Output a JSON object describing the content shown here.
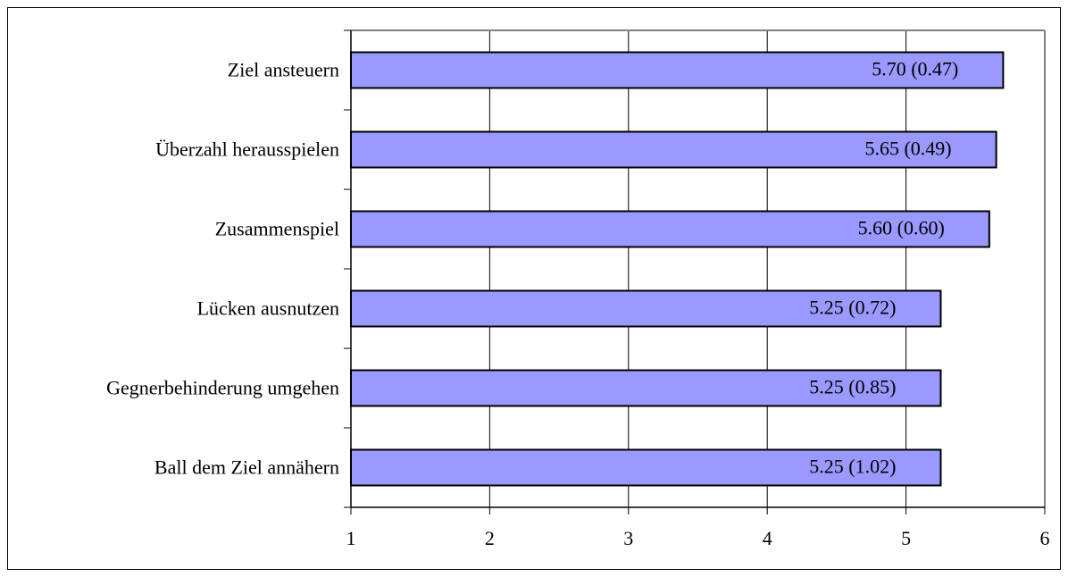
{
  "chart_data": {
    "type": "bar",
    "orientation": "horizontal",
    "categories": [
      "Ziel ansteuern",
      "Überzahl herausspielen",
      "Zusammenspiel",
      "Lücken ausnutzen",
      "Gegnerbehinderung umgehen",
      "Ball dem Ziel annähern"
    ],
    "values": [
      5.7,
      5.65,
      5.6,
      5.25,
      5.25,
      5.25
    ],
    "data_labels": [
      "5.70 (0.47)",
      "5.65 (0.49)",
      "5.60 (0.60)",
      "5.25 (0.72)",
      "5.25 (0.85)",
      "5.25 (1.02)"
    ],
    "xlim": [
      1,
      6
    ],
    "xticks": [
      "1",
      "2",
      "3",
      "4",
      "5",
      "6"
    ],
    "title": "",
    "xlabel": "",
    "ylabel": "",
    "grid": "vertical",
    "legend": "none",
    "bar_color": "#9999ff",
    "bar_edge_color": "#000000"
  }
}
